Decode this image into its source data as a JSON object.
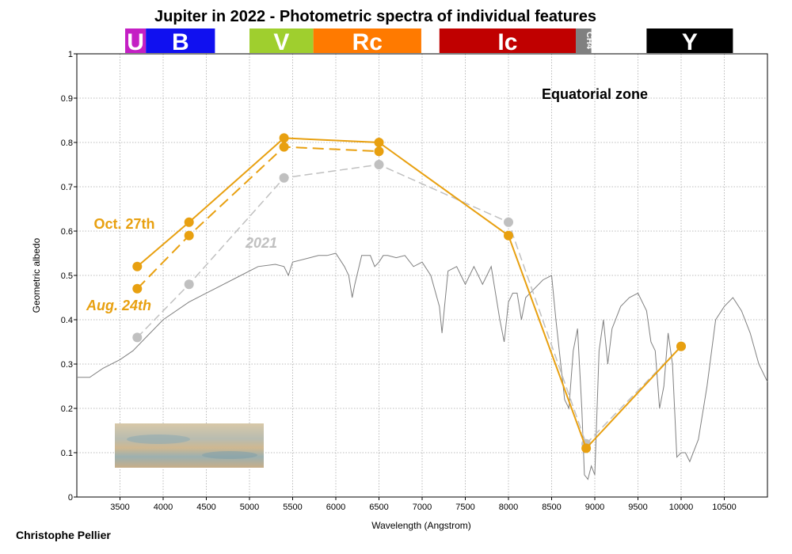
{
  "chart_data": {
    "type": "line",
    "title": "Jupiter in 2022 - Photometric spectra of individual features",
    "xlabel": "Wavelength (Angstrom)",
    "ylabel": "Geometric albedo",
    "xlim": [
      3000,
      11000
    ],
    "ylim": [
      0,
      1
    ],
    "x_ticks": [
      3500,
      4000,
      4500,
      5000,
      5500,
      6000,
      6500,
      7000,
      7500,
      8000,
      8500,
      9000,
      9500,
      10000,
      10500
    ],
    "y_ticks": [
      0,
      0.1,
      0.2,
      0.3,
      0.4,
      0.5,
      0.6,
      0.7,
      0.8,
      0.9,
      1
    ],
    "y_tick_labels": [
      "0",
      "0.1",
      "0.2",
      "0.3",
      "0.4",
      "0.5",
      "0.6",
      "0.7",
      "0.8",
      "0.9",
      "1"
    ],
    "grid": true,
    "annotation": "Equatorial zone",
    "credit": "Christophe Pellier",
    "bands": [
      {
        "label": "U",
        "from": 3560,
        "to": 3800,
        "color": "#c41fc4"
      },
      {
        "label": "B",
        "from": 3800,
        "to": 4600,
        "color": "#1010f0"
      },
      {
        "label": "V",
        "from": 5000,
        "to": 5740,
        "color": "#9fcf2e"
      },
      {
        "label": "Rc",
        "from": 5740,
        "to": 6990,
        "color": "#ff7a00"
      },
      {
        "label": "Ic",
        "from": 7200,
        "to": 8780,
        "color": "#c00000"
      },
      {
        "label": "CH4",
        "from": 8780,
        "to": 8960,
        "color": "#808080"
      },
      {
        "label": "Y",
        "from": 9600,
        "to": 10600,
        "color": "#000000"
      }
    ],
    "series": [
      {
        "name": "Oct. 27th",
        "style": "solid",
        "color": "#e8a010",
        "x": [
          3700,
          4300,
          5400,
          6500,
          8000,
          8900,
          10000
        ],
        "y": [
          0.52,
          0.62,
          0.81,
          0.8,
          0.59,
          0.11,
          0.34
        ]
      },
      {
        "name": "Aug. 24th",
        "style": "dashed",
        "color": "#e8a010",
        "x": [
          3700,
          4300,
          5400,
          6500
        ],
        "y": [
          0.47,
          0.59,
          0.79,
          0.78
        ]
      },
      {
        "name": "2021",
        "style": "dashed",
        "color": "#c0c0c0",
        "x": [
          3700,
          4300,
          5400,
          6500,
          8000,
          8900,
          10000
        ],
        "y": [
          0.36,
          0.48,
          0.72,
          0.75,
          0.62,
          0.12,
          0.34
        ]
      }
    ],
    "reference_spectrum": {
      "color": "#808080",
      "x": [
        3000,
        3150,
        3300,
        3500,
        3650,
        3800,
        4000,
        4300,
        4600,
        4900,
        5100,
        5300,
        5400,
        5450,
        5500,
        5700,
        5800,
        5900,
        6000,
        6100,
        6150,
        6190,
        6220,
        6300,
        6400,
        6450,
        6500,
        6550,
        6600,
        6700,
        6800,
        6900,
        7000,
        7100,
        7200,
        7230,
        7260,
        7300,
        7400,
        7500,
        7600,
        7700,
        7800,
        7900,
        7950,
        8000,
        8050,
        8100,
        8150,
        8200,
        8300,
        8400,
        8500,
        8550,
        8600,
        8650,
        8700,
        8750,
        8800,
        8850,
        8880,
        8920,
        8960,
        9000,
        9050,
        9100,
        9150,
        9200,
        9300,
        9400,
        9500,
        9600,
        9650,
        9700,
        9750,
        9800,
        9850,
        9900,
        9950,
        10000,
        10050,
        10100,
        10200,
        10300,
        10400,
        10500,
        10600,
        10700,
        10800,
        10900,
        11000
      ],
      "y": [
        0.27,
        0.27,
        0.29,
        0.31,
        0.33,
        0.36,
        0.4,
        0.44,
        0.47,
        0.5,
        0.52,
        0.525,
        0.52,
        0.5,
        0.53,
        0.54,
        0.545,
        0.545,
        0.55,
        0.52,
        0.5,
        0.45,
        0.48,
        0.545,
        0.545,
        0.52,
        0.53,
        0.545,
        0.545,
        0.54,
        0.545,
        0.52,
        0.53,
        0.5,
        0.43,
        0.37,
        0.43,
        0.51,
        0.52,
        0.48,
        0.52,
        0.48,
        0.52,
        0.4,
        0.35,
        0.44,
        0.46,
        0.46,
        0.4,
        0.45,
        0.47,
        0.49,
        0.5,
        0.4,
        0.31,
        0.22,
        0.2,
        0.33,
        0.38,
        0.2,
        0.05,
        0.04,
        0.07,
        0.05,
        0.33,
        0.4,
        0.3,
        0.38,
        0.43,
        0.45,
        0.46,
        0.42,
        0.35,
        0.33,
        0.2,
        0.25,
        0.37,
        0.3,
        0.09,
        0.1,
        0.1,
        0.08,
        0.13,
        0.25,
        0.4,
        0.43,
        0.45,
        0.42,
        0.37,
        0.3,
        0.26
      ]
    },
    "legend_annotations": [
      {
        "text": "Oct. 27th",
        "color": "#e8a010",
        "italic": false
      },
      {
        "text": "Aug. 24th",
        "color": "#e8a010",
        "italic": true
      },
      {
        "text": "2021",
        "color": "#c0c0c0",
        "italic": true
      }
    ]
  }
}
